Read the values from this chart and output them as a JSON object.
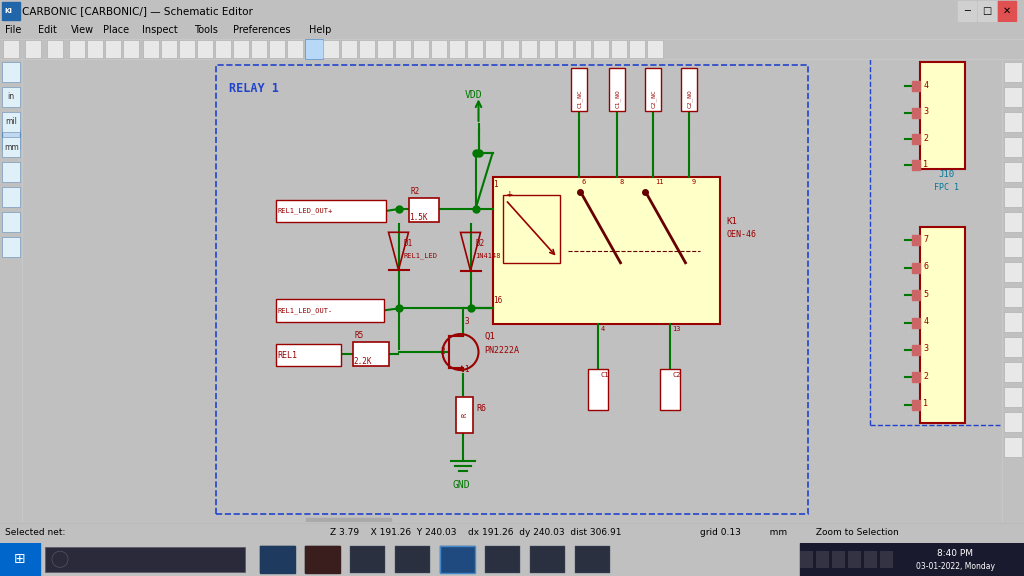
{
  "title": "CARBONIC [CARBONIC/] — Schematic Editor",
  "title_bar_bg": "#f0f0f0",
  "title_bar_text_color": "#000000",
  "menu_bar_bg": "#f0f0f0",
  "toolbar_bg": "#f0f0f0",
  "canvas_bg": "#eeeeee",
  "left_sidebar_bg": "#f0f0f0",
  "right_sidebar_bg": "#f0f0f0",
  "status_bar_bg": "#f0f0f0",
  "taskbar_bg": "#1e1e2e",
  "window_border": "#aaaaaa",
  "dashed_blue": "#2244cc",
  "green_wire": "#007700",
  "red_comp": "#990000",
  "yellow_fill": "#ffffc8",
  "cyan_label": "#007799",
  "dark_line": "#660000",
  "dot_color": "#bbbbcc",
  "menu_items": [
    "File",
    "Edit",
    "View",
    "Place",
    "Inspect",
    "Tools",
    "Preferences",
    "Help"
  ],
  "status_left": "Selected net:",
  "status_center": "Z 3.79    X 191.26  Y 240.03    dx 191.26  dy 240.03  dist 306.91",
  "status_right": "grid 0.13          mm          Zoom to Selection",
  "taskbar_time": "8:40 PM",
  "taskbar_date": "03-01-2022, Monday",
  "relay_label": "RELAY 1",
  "vdd": "VDD",
  "gnd": "GND",
  "r2_ref": "R2",
  "r2_val": "1.5K",
  "r5_ref": "R5",
  "r5_val": "2.2K",
  "r6_ref": "R6",
  "d1_ref": "D1",
  "d1_val": "REL1_LED",
  "d2_ref": "D2",
  "d2_val": "1N4148",
  "q1_ref": "Q1",
  "q1_val": "PN2222A",
  "k1_ref": "K1",
  "k1_val": "OEN-46",
  "net_rel1": "REL1",
  "net_plus": "REL1_LED_OUT+",
  "net_minus": "REL1_LED_OUT-",
  "pin_labels": [
    "C1_NC",
    "C1_NO",
    "C2_NC",
    "C2_NO"
  ],
  "pin_nums_top": [
    "6",
    "8",
    "11",
    "9"
  ],
  "pin_bot_nums": [
    "4",
    "13"
  ],
  "cap_labels": [
    "C1",
    "C2"
  ],
  "coil_pins": [
    "1",
    "16"
  ],
  "j10_ref": "J10",
  "j10_val": "FPC 1",
  "top_conn_pins": [
    "4",
    "3",
    "2",
    "1"
  ],
  "bot_conn_pins": [
    "7",
    "6",
    "5",
    "4",
    "3",
    "2",
    "1"
  ]
}
